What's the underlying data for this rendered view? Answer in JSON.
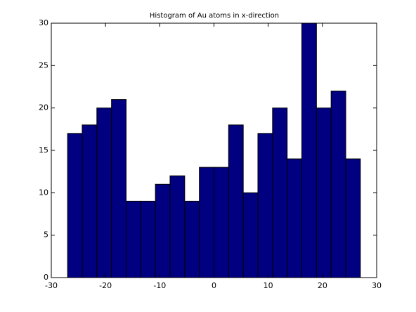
{
  "chart_data": {
    "type": "histogram",
    "title": "Histogram of Au atoms in x-direction",
    "bins": [
      -27,
      -24.3,
      -21.6,
      -18.9,
      -16.2,
      -13.5,
      -10.8,
      -8.1,
      -5.4,
      -2.7,
      0,
      2.7,
      5.4,
      8.1,
      10.8,
      13.5,
      16.2,
      18.9,
      21.6,
      24.3,
      27
    ],
    "values": [
      17,
      18,
      20,
      21,
      9,
      9,
      11,
      12,
      9,
      13,
      13,
      18,
      10,
      17,
      20,
      14,
      30,
      20,
      22,
      14
    ],
    "color": "#000080",
    "xlim": [
      -30,
      30
    ],
    "xticks": [
      -30,
      -20,
      -10,
      0,
      10,
      20,
      30
    ],
    "ylim": [
      0,
      30
    ],
    "yticks": [
      0,
      5,
      10,
      15,
      20,
      25,
      30
    ],
    "grid": false
  }
}
